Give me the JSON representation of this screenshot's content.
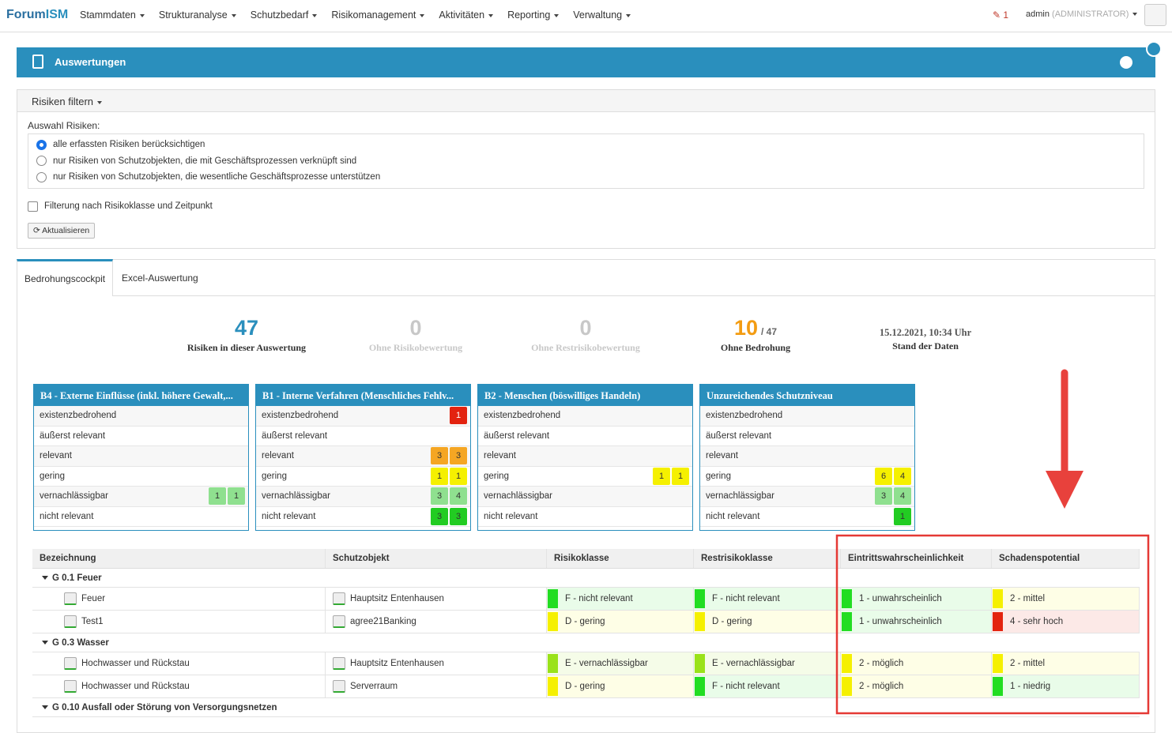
{
  "nav": {
    "brand_prefix": "Forum",
    "brand_suffix": "ISM",
    "menu": [
      "Stammdaten",
      "Strukturanalyse",
      "Schutzbedarf",
      "Risikomanagement",
      "Aktivitäten",
      "Reporting",
      "Verwaltung"
    ],
    "notifications": "1",
    "user": "admin",
    "role": "(ADMINISTRATOR)"
  },
  "panel": {
    "title": "Auswertungen"
  },
  "filter": {
    "title": "Risiken filtern",
    "selection_label": "Auswahl Risiken:",
    "options": [
      "alle erfassten Risiken berücksichtigen",
      "nur Risiken von Schutzobjekten, die mit Geschäftsprozessen verknüpft sind",
      "nur Risiken von Schutzobjekten, die wesentliche Geschäftsprozesse unterstützen"
    ],
    "checkbox": "Filterung nach Risikoklasse und Zeitpunkt",
    "button": "Aktualisieren"
  },
  "tabs": [
    "Bedrohungscockpit",
    "Excel-Auswertung"
  ],
  "stats": [
    {
      "value": "47",
      "label": "Risiken in dieser Auswertung",
      "color": "#2a8fbd"
    },
    {
      "value": "0",
      "label": "Ohne Risikobewertung",
      "color": "#c8c8c8"
    },
    {
      "value": "0",
      "label": "Ohne Restrisikobewertung",
      "color": "#c8c8c8"
    },
    {
      "value": "10",
      "total": "/ 47",
      "label": "Ohne Bedrohung",
      "color": "#f39c12"
    },
    {
      "date": "15.12.2021, 10:34 Uhr",
      "label": "Stand der Daten"
    }
  ],
  "cards": [
    {
      "title": "B4 - Externe Einflüsse (inkl. höhere Gewalt,...",
      "rows": [
        {
          "label": "existenzbedrohend",
          "badges": []
        },
        {
          "label": "äußerst relevant",
          "badges": []
        },
        {
          "label": "relevant",
          "badges": []
        },
        {
          "label": "gering",
          "badges": []
        },
        {
          "label": "vernachlässigbar",
          "badges": [
            {
              "value": "1",
              "color": "#8fe08f"
            },
            {
              "value": "1",
              "color": "#8fe08f"
            }
          ]
        },
        {
          "label": "nicht relevant",
          "badges": []
        }
      ]
    },
    {
      "title": "B1 - Interne Verfahren (Menschliches Fehlv...",
      "rows": [
        {
          "label": "existenzbedrohend",
          "badges": [
            {
              "value": "1",
              "color": "#e3230f"
            }
          ]
        },
        {
          "label": "äußerst relevant",
          "badges": []
        },
        {
          "label": "relevant",
          "badges": [
            {
              "value": "3",
              "color": "#f5a623"
            },
            {
              "value": "3",
              "color": "#f5a623"
            }
          ]
        },
        {
          "label": "gering",
          "badges": [
            {
              "value": "1",
              "color": "#f5f000"
            },
            {
              "value": "1",
              "color": "#f5f000"
            }
          ]
        },
        {
          "label": "vernachlässigbar",
          "badges": [
            {
              "value": "3",
              "color": "#8fe08f"
            },
            {
              "value": "4",
              "color": "#8fe08f"
            }
          ]
        },
        {
          "label": "nicht relevant",
          "badges": [
            {
              "value": "3",
              "color": "#22cc22"
            },
            {
              "value": "3",
              "color": "#22cc22"
            }
          ]
        }
      ]
    },
    {
      "title": "B2 - Menschen (böswilliges Handeln)",
      "rows": [
        {
          "label": "existenzbedrohend",
          "badges": []
        },
        {
          "label": "äußerst relevant",
          "badges": []
        },
        {
          "label": "relevant",
          "badges": []
        },
        {
          "label": "gering",
          "badges": [
            {
              "value": "1",
              "color": "#f5f000"
            },
            {
              "value": "1",
              "color": "#f5f000"
            }
          ]
        },
        {
          "label": "vernachlässigbar",
          "badges": []
        },
        {
          "label": "nicht relevant",
          "badges": []
        }
      ]
    },
    {
      "title": "Unzureichendes Schutzniveau",
      "rows": [
        {
          "label": "existenzbedrohend",
          "badges": []
        },
        {
          "label": "äußerst relevant",
          "badges": []
        },
        {
          "label": "relevant",
          "badges": []
        },
        {
          "label": "gering",
          "badges": [
            {
              "value": "6",
              "color": "#f5f000"
            },
            {
              "value": "4",
              "color": "#f5f000"
            }
          ]
        },
        {
          "label": "vernachlässigbar",
          "badges": [
            {
              "value": "3",
              "color": "#8fe08f"
            },
            {
              "value": "4",
              "color": "#8fe08f"
            }
          ]
        },
        {
          "label": "nicht relevant",
          "badges": [
            {
              "value": "1",
              "color": "#22cc22"
            }
          ]
        }
      ]
    }
  ],
  "table": {
    "columns": [
      "Bezeichnung",
      "Schutzobjekt",
      "Risikoklasse",
      "Restrisikoklasse",
      "Eintrittswahrscheinlichkeit",
      "Schadenspotential"
    ],
    "groups": [
      {
        "title": "G 0.1 Feuer",
        "rows": [
          {
            "name": "Feuer",
            "object": "Hauptsitz Entenhausen",
            "cells": [
              {
                "text": "F - nicht relevant",
                "color": "#22dd22"
              },
              {
                "text": "F - nicht relevant",
                "color": "#22dd22"
              },
              {
                "text": "1 - unwahrscheinlich",
                "color": "#22dd22"
              },
              {
                "text": "2 - mittel",
                "color": "#f5f000"
              }
            ]
          },
          {
            "name": "Test1",
            "object": "agree21Banking",
            "cells": [
              {
                "text": "D - gering",
                "color": "#f5f000"
              },
              {
                "text": "D - gering",
                "color": "#f5f000"
              },
              {
                "text": "1 - unwahrscheinlich",
                "color": "#22dd22"
              },
              {
                "text": "4 - sehr hoch",
                "color": "#e3230f"
              }
            ]
          }
        ]
      },
      {
        "title": "G 0.3 Wasser",
        "rows": [
          {
            "name": "Hochwasser und Rückstau",
            "object": "Hauptsitz Entenhausen",
            "cells": [
              {
                "text": "E - vernachlässigbar",
                "color": "#9ae21a"
              },
              {
                "text": "E - vernachlässigbar",
                "color": "#9ae21a"
              },
              {
                "text": "2 - möglich",
                "color": "#f5f000"
              },
              {
                "text": "2 - mittel",
                "color": "#f5f000"
              }
            ]
          },
          {
            "name": "Hochwasser und Rückstau",
            "object": "Serverraum",
            "cells": [
              {
                "text": "D - gering",
                "color": "#f5f000"
              },
              {
                "text": "F - nicht relevant",
                "color": "#22dd22"
              },
              {
                "text": "2 - möglich",
                "color": "#f5f000"
              },
              {
                "text": "1 - niedrig",
                "color": "#22dd22"
              }
            ]
          }
        ]
      },
      {
        "title": "G 0.10 Ausfall oder Störung von Versorgungsnetzen",
        "rows": []
      }
    ]
  }
}
